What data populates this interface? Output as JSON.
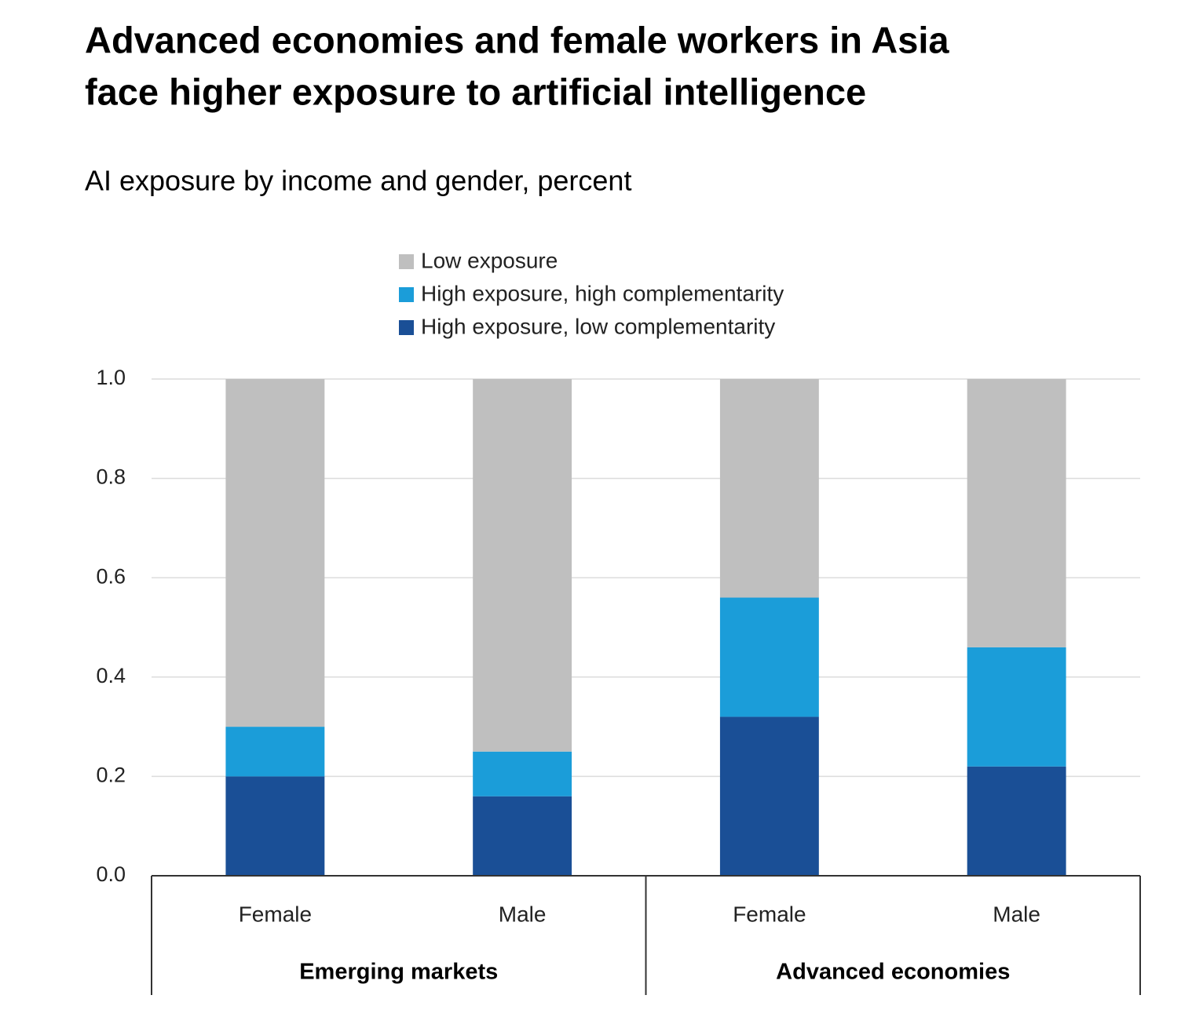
{
  "chart_data": {
    "type": "stacked_bar",
    "title": [
      "Advanced economies and female workers in Asia",
      "face higher exposure to artificial intelligence"
    ],
    "subtitle": "AI exposure by income and gender, percent",
    "groups": [
      {
        "label": "Emerging markets",
        "categories": [
          "Female",
          "Male"
        ]
      },
      {
        "label": "Advanced economies",
        "categories": [
          "Female",
          "Male"
        ]
      }
    ],
    "series": [
      {
        "name": "Low exposure",
        "color": "#bfbfbf",
        "values": [
          0.7,
          0.75,
          0.44,
          0.54
        ]
      },
      {
        "name": "High exposure, high complementarity",
        "color": "#1b9dd9",
        "values": [
          0.1,
          0.09,
          0.24,
          0.24
        ]
      },
      {
        "name": "High exposure, low complementarity",
        "color": "#1a4f96",
        "values": [
          0.2,
          0.16,
          0.32,
          0.22
        ]
      }
    ],
    "ylim": [
      0,
      1
    ],
    "yticks": [
      {
        "value": 0,
        "label": "0.0"
      },
      0.2,
      0.4,
      0.6,
      0.8,
      {
        "value": 1,
        "label": "1.0"
      }
    ],
    "grid": true
  }
}
